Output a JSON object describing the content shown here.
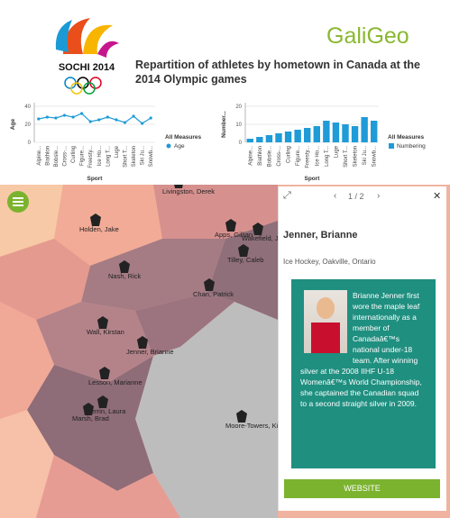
{
  "header": {
    "logo_text": "SOCHI 2014",
    "brand": "GaliGeo",
    "title": "Repartition of athletes by hometown in Canada at the 2014 Olympic games"
  },
  "chart_data": [
    {
      "type": "line",
      "y_label": "Age",
      "x_label": "Sport",
      "legend_title": "All Measures",
      "color": "#1f9bd7",
      "categories": [
        "Alpine...",
        "Biathlon",
        "Bobsle...",
        "Cross-...",
        "Curling",
        "Figure...",
        "Freesty...",
        "Ice Ho...",
        "Long T...",
        "Luge",
        "Short T...",
        "Skeleton",
        "Ski Ju...",
        "Snowb..."
      ],
      "series": [
        {
          "name": "Age",
          "color": "#1f9bd7",
          "values": [
            26,
            28,
            27,
            30,
            28,
            32,
            23,
            25,
            28,
            25,
            22,
            29,
            21,
            27
          ]
        }
      ],
      "ylim": [
        0,
        40
      ],
      "yticks": [
        0,
        20,
        40
      ]
    },
    {
      "type": "bar",
      "y_label": "Number...",
      "x_label": "Sport",
      "legend_title": "All Measures",
      "color": "#1f9bd7",
      "categories": [
        "Alpine...",
        "Biathlon",
        "Bobsle...",
        "Cross-...",
        "Curling",
        "Figure...",
        "Freesty...",
        "Ice Ho...",
        "Long T...",
        "Luge",
        "Short T...",
        "Skeleton",
        "Ski Ju...",
        "Snowb..."
      ],
      "series": [
        {
          "name": "Numbering",
          "color": "#1f9bd7",
          "values": [
            2,
            3,
            4,
            5,
            6,
            7,
            8,
            9,
            12,
            11,
            10,
            9,
            14,
            12
          ]
        }
      ],
      "ylim": [
        0,
        20
      ],
      "yticks": [
        0,
        10,
        20
      ]
    }
  ],
  "map": {
    "athletes": [
      {
        "name": "Livingston, Derek"
      },
      {
        "name": "Holden, Jake"
      },
      {
        "name": "Apps, Gillian"
      },
      {
        "name": "Wakefield, Jennifer"
      },
      {
        "name": "Nash, Rick"
      },
      {
        "name": "Tilley, Caleb"
      },
      {
        "name": "Chan, Patrick"
      },
      {
        "name": "Wall, Kirstan"
      },
      {
        "name": "Jenner, Brianne"
      },
      {
        "name": "Lesson, Marianne"
      },
      {
        "name": "Perrin, Laura"
      },
      {
        "name": "Marsh, Brad"
      },
      {
        "name": "Moore-Towers, Kirsten"
      }
    ]
  },
  "panel": {
    "pager": "1 / 2",
    "name": "Jenner, Brianne",
    "details": "Ice Hockey, Oakville, Ontario",
    "bio": "Brianne Jenner first wore the maple leaf internationally as a member of Canadaâ€™s national under-18 team. After winning silver at the 2008 IIHF U-18 Womenâ€™s World Championship, she captained the Canadian squad to a second straight silver in 2009.",
    "button": "WEBSITE"
  }
}
